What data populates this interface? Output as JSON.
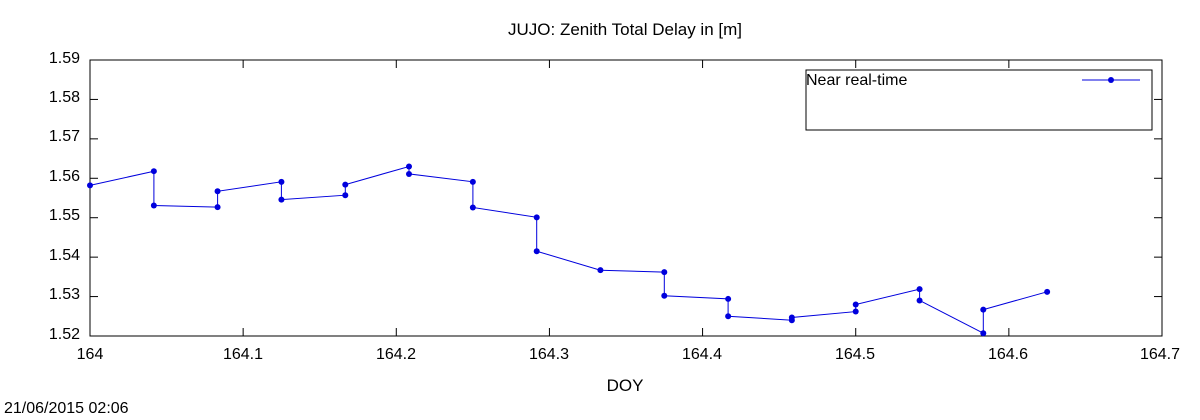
{
  "chart_data": {
    "type": "line",
    "title": "JUJO: Zenith Total Delay in [m]",
    "xlabel": "DOY",
    "ylabel": "",
    "xlim": [
      164,
      164.7
    ],
    "ylim": [
      1.52,
      1.59
    ],
    "xticks": [
      "164",
      "164.1",
      "164.2",
      "164.3",
      "164.4",
      "164.5",
      "164.6",
      "164.7"
    ],
    "yticks": [
      "1.59",
      "1.58",
      "1.57",
      "1.56",
      "1.55",
      "1.54",
      "1.53",
      "1.52"
    ],
    "legend_position": "top-right",
    "color": "#0000dd",
    "series": [
      {
        "name": "Near real-time",
        "x": [
          164.0,
          164.0417,
          164.0417,
          164.0833,
          164.0833,
          164.125,
          164.125,
          164.1667,
          164.1667,
          164.2083,
          164.2083,
          164.25,
          164.25,
          164.2917,
          164.2917,
          164.3333,
          164.375,
          164.375,
          164.4167,
          164.4167,
          164.4583,
          164.4583,
          164.5,
          164.5,
          164.5417,
          164.5417,
          164.5833,
          164.5833,
          164.625
        ],
        "y": [
          1.5582,
          1.5618,
          1.5531,
          1.5527,
          1.5567,
          1.5591,
          1.5546,
          1.5557,
          1.5584,
          1.563,
          1.5611,
          1.5591,
          1.5526,
          1.5501,
          1.5415,
          1.5367,
          1.5362,
          1.5302,
          1.5294,
          1.525,
          1.524,
          1.5247,
          1.5262,
          1.528,
          1.5319,
          1.529,
          1.5207,
          1.5267,
          1.5312
        ]
      }
    ]
  },
  "footer": {
    "timestamp": "21/06/2015 02:06"
  }
}
